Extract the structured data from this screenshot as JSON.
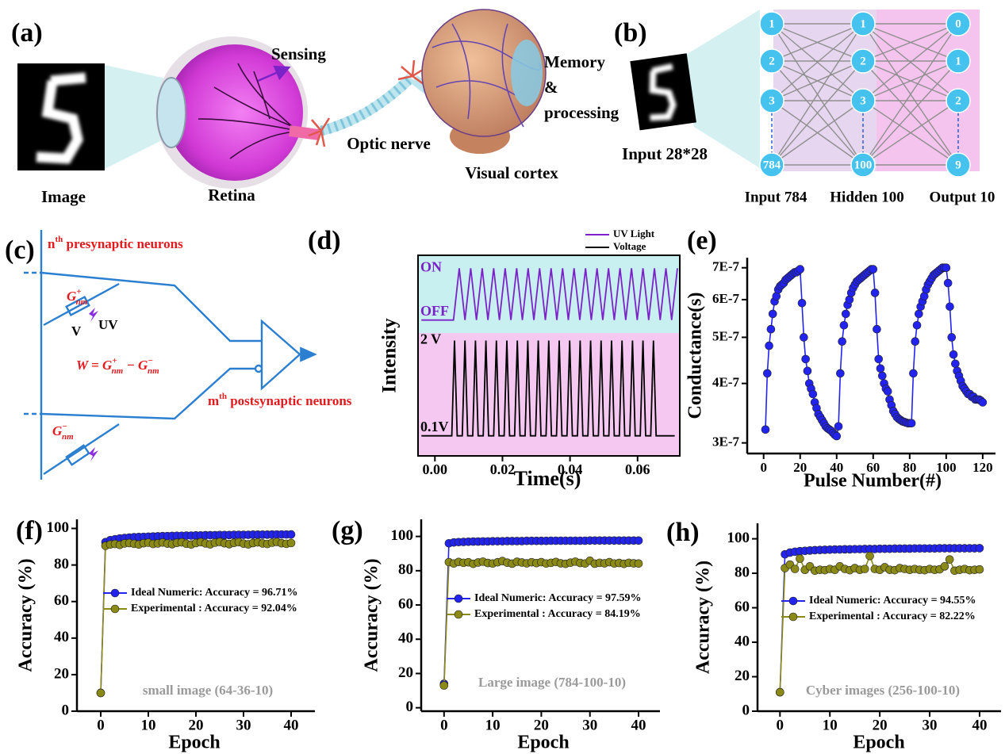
{
  "panel_a": {
    "label": "(a)",
    "image": "Image",
    "retina": "Retina",
    "sensing": "Sensing",
    "optic_nerve": "Optic nerve",
    "visual_cortex": "Visual cortex",
    "memory": [
      "Memory",
      "&",
      "processing"
    ]
  },
  "panel_b": {
    "label": "(b)",
    "input_image": "Input 28*28",
    "layers": [
      {
        "name": "Input 784",
        "nodes": [
          "1",
          "2",
          "3",
          "784"
        ]
      },
      {
        "name": "Hidden 100",
        "nodes": [
          "1",
          "2",
          "3",
          "100"
        ]
      },
      {
        "name": "Output 10",
        "nodes": [
          "0",
          "1",
          "2",
          "9"
        ]
      }
    ]
  },
  "panel_c": {
    "label": "(c)",
    "presynaptic": [
      "n",
      "th",
      " presynaptic neurons"
    ],
    "postsynaptic": [
      "m",
      "th",
      " postsynaptic neurons"
    ],
    "g_plus": [
      "G",
      "+",
      "nm"
    ],
    "g_minus": [
      "G",
      "−",
      "nm"
    ],
    "voltage": "V",
    "light": "UV",
    "equation": [
      "W = G",
      "+",
      "nm",
      " − G",
      "−",
      "nm"
    ]
  },
  "chart_data": [
    {
      "type": "line",
      "label": "(d)",
      "xlabel": "Time(s)",
      "ylabel": "Intensity",
      "xlim": [
        -0.005,
        0.0725
      ],
      "xticks": [
        {
          "value": 0,
          "label": "0.00"
        },
        {
          "value": 0.02,
          "label": "0.02"
        },
        {
          "value": 0.04,
          "label": "0.04"
        },
        {
          "value": 0.06,
          "label": "0.06"
        }
      ],
      "ylim": [
        -0.3,
        2.15
      ],
      "yticks": [
        {
          "value": 0.1,
          "label": "0.1V"
        },
        {
          "value": 2,
          "label": "2 V"
        }
      ],
      "y2lim": [
        -0.25,
        1.25
      ],
      "y2ticks": [
        {
          "value": 0,
          "label": "OFF"
        },
        {
          "value": 1,
          "label": "ON"
        }
      ],
      "series": [
        {
          "name": "UV Light",
          "color": "#7b22c8",
          "axis": "y2",
          "x": [
            -0.004,
            0.0055,
            0.0072,
            0.0089,
            0.0106,
            0.0123,
            0.014,
            0.0157,
            0.0174,
            0.0191,
            0.0208,
            0.0225,
            0.0242,
            0.0259,
            0.0276,
            0.0293,
            0.031,
            0.0327,
            0.0344,
            0.0361,
            0.0378,
            0.0395,
            0.0412,
            0.0429,
            0.0446,
            0.0463,
            0.048,
            0.0497,
            0.0514,
            0.0531,
            0.0548,
            0.0565,
            0.0582,
            0.0599,
            0.0616,
            0.0633,
            0.065,
            0.0667,
            0.0684,
            0.0701,
            0.0718
          ],
          "values": [
            0,
            0,
            1,
            0,
            1,
            0,
            1,
            0,
            1,
            0,
            1,
            0,
            1,
            0,
            1,
            0,
            1,
            0,
            1,
            0,
            1,
            0,
            1,
            0,
            1,
            0,
            1,
            0,
            1,
            0,
            1,
            0,
            1,
            0,
            1,
            0,
            1,
            0,
            1,
            0,
            1
          ]
        },
        {
          "name": "Voltage",
          "color": "#000000",
          "x": [
            -0.004,
            0.005,
            0.0058,
            0.0066,
            0.0081,
            0.0089,
            0.0097,
            0.0112,
            0.012,
            0.0128,
            0.0143,
            0.0151,
            0.0159,
            0.0174,
            0.0182,
            0.019,
            0.0205,
            0.0213,
            0.0221,
            0.0236,
            0.0244,
            0.0252,
            0.0267,
            0.0275,
            0.0283,
            0.0298,
            0.0306,
            0.0314,
            0.0329,
            0.0337,
            0.0345,
            0.036,
            0.0368,
            0.0376,
            0.0391,
            0.0399,
            0.0407,
            0.0422,
            0.043,
            0.0438,
            0.0453,
            0.0461,
            0.0469,
            0.0484,
            0.0492,
            0.05,
            0.0515,
            0.0523,
            0.0531,
            0.0546,
            0.0554,
            0.0562,
            0.0577,
            0.0585,
            0.0593,
            0.0608,
            0.0616,
            0.0624,
            0.0639,
            0.0647,
            0.0655,
            0.071
          ],
          "values": [
            0.1,
            0.1,
            2,
            0.1,
            0.1,
            2,
            0.1,
            0.1,
            2,
            0.1,
            0.1,
            2,
            0.1,
            0.1,
            2,
            0.1,
            0.1,
            2,
            0.1,
            0.1,
            2,
            0.1,
            0.1,
            2,
            0.1,
            0.1,
            2,
            0.1,
            0.1,
            2,
            0.1,
            0.1,
            2,
            0.1,
            0.1,
            2,
            0.1,
            0.1,
            2,
            0.1,
            0.1,
            2,
            0.1,
            0.1,
            2,
            0.1,
            0.1,
            2,
            0.1,
            0.1,
            2,
            0.1,
            0.1,
            2,
            0.1,
            0.1,
            2,
            0.1,
            0.1,
            2,
            0.1,
            0.1
          ]
        }
      ]
    },
    {
      "type": "line",
      "label": "(e)",
      "xlabel": "Pulse Number(#)",
      "ylabel": "Conductance(s)",
      "log_y": true,
      "markers": true,
      "xlim": [
        -9,
        127
      ],
      "xticks": [
        0,
        20,
        40,
        60,
        80,
        100,
        120
      ],
      "ylim": [
        2.85e-07,
        7.35e-07
      ],
      "yticks": [
        {
          "value": 3e-07,
          "label": "3E-7"
        },
        {
          "value": 4e-07,
          "label": "4E-7"
        },
        {
          "value": 5e-07,
          "label": "5E-7"
        },
        {
          "value": 6e-07,
          "label": "6E-7"
        },
        {
          "value": 7e-07,
          "label": "7E-7"
        }
      ],
      "x": [
        1,
        2,
        3,
        4,
        5,
        6,
        7,
        8,
        9,
        10,
        11,
        12,
        13,
        14,
        15,
        16,
        17,
        18,
        19,
        20,
        21,
        22,
        23,
        24,
        25,
        26,
        27,
        28,
        29,
        30,
        31,
        32,
        33,
        34,
        35,
        36,
        37,
        38,
        39,
        40,
        41,
        42,
        43,
        44,
        45,
        46,
        47,
        48,
        49,
        50,
        51,
        52,
        53,
        54,
        55,
        56,
        57,
        58,
        59,
        60,
        61,
        62,
        63,
        64,
        65,
        66,
        67,
        68,
        69,
        70,
        71,
        72,
        73,
        74,
        75,
        76,
        77,
        78,
        79,
        80,
        81,
        82,
        83,
        84,
        85,
        86,
        87,
        88,
        89,
        90,
        91,
        92,
        93,
        94,
        95,
        96,
        97,
        98,
        99,
        100,
        101,
        102,
        103,
        104,
        105,
        106,
        107,
        108,
        109,
        110,
        111,
        112,
        113,
        114,
        115,
        116,
        117,
        118,
        119,
        120
      ],
      "series": [
        {
          "color": "#2323f0",
          "values": [
            3.2e-07,
            4.2e-07,
            4.8e-07,
            5.2e-07,
            5.6e-07,
            5.95e-07,
            6.1e-07,
            6.3e-07,
            6.4e-07,
            6.45e-07,
            6.5e-07,
            6.6e-07,
            6.65e-07,
            6.7e-07,
            6.75e-07,
            6.8e-07,
            6.85e-07,
            6.85e-07,
            6.9e-07,
            6.95e-07,
            5.9e-07,
            5e-07,
            4.5e-07,
            4.25e-07,
            4e-07,
            3.9e-07,
            3.8e-07,
            3.65e-07,
            3.55e-07,
            3.45e-07,
            3.4e-07,
            3.35e-07,
            3.3e-07,
            3.25e-07,
            3.22e-07,
            3.2e-07,
            3.18e-07,
            3.15e-07,
            3.12e-07,
            3.1e-07,
            3.25e-07,
            4.2e-07,
            4.9e-07,
            5.3e-07,
            5.6e-07,
            5.85e-07,
            6e-07,
            6.2e-07,
            6.35e-07,
            6.45e-07,
            6.55e-07,
            6.6e-07,
            6.65e-07,
            6.7e-07,
            6.75e-07,
            6.8e-07,
            6.85e-07,
            6.9e-07,
            6.95e-07,
            6.95e-07,
            6.2e-07,
            5.2e-07,
            4.5e-07,
            4.3e-07,
            4.15e-07,
            4e-07,
            3.9e-07,
            3.85e-07,
            3.7e-07,
            3.6e-07,
            3.5e-07,
            3.45e-07,
            3.4e-07,
            3.37e-07,
            3.35e-07,
            3.33e-07,
            3.32e-07,
            3.31e-07,
            3.3e-07,
            3.3e-07,
            3.3e-07,
            4.2e-07,
            4.9e-07,
            5.3e-07,
            5.6e-07,
            5.8e-07,
            5.95e-07,
            6.1e-07,
            6.3e-07,
            6.45e-07,
            6.55e-07,
            6.65e-07,
            6.75e-07,
            6.8e-07,
            6.85e-07,
            6.9e-07,
            6.95e-07,
            7e-07,
            7e-07,
            7e-07,
            6.5e-07,
            5.8e-07,
            5e-07,
            4.6e-07,
            4.4e-07,
            4.25e-07,
            4.15e-07,
            4.05e-07,
            3.95e-07,
            3.9e-07,
            3.85e-07,
            3.8e-07,
            3.8e-07,
            3.75e-07,
            3.75e-07,
            3.7e-07,
            3.7e-07,
            3.7e-07,
            3.68e-07,
            3.65e-07
          ]
        }
      ]
    },
    {
      "type": "line",
      "label": "(f)",
      "xlabel": "Epoch",
      "ylabel": "Accuracy (%)",
      "annotation": "small image (64-36-10)",
      "markers": true,
      "xlim": [
        -5,
        45
      ],
      "xticks": [
        0,
        10,
        20,
        30,
        40
      ],
      "ylim": [
        0,
        105
      ],
      "yticks": [
        0,
        20,
        40,
        60,
        80,
        100
      ],
      "x": [
        0,
        1,
        2,
        3,
        4,
        5,
        6,
        7,
        8,
        9,
        10,
        11,
        12,
        13,
        14,
        15,
        16,
        17,
        18,
        19,
        20,
        21,
        22,
        23,
        24,
        25,
        26,
        27,
        28,
        29,
        30,
        31,
        32,
        33,
        34,
        35,
        36,
        37,
        38,
        39,
        40
      ],
      "series": [
        {
          "name": "Ideal Numeric: Accuracy = 96.71%",
          "color": "#2323f0",
          "values": [
            10,
            92.5,
            93.6,
            94.1,
            94.5,
            94.8,
            95.0,
            95.2,
            95.3,
            95.4,
            95.5,
            95.6,
            95.7,
            95.8,
            95.8,
            95.9,
            96.0,
            96.0,
            96.1,
            96.1,
            96.2,
            96.2,
            96.3,
            96.3,
            96.3,
            96.4,
            96.4,
            96.4,
            96.5,
            96.5,
            96.5,
            96.5,
            96.6,
            96.6,
            96.6,
            96.6,
            96.7,
            96.7,
            96.7,
            96.7,
            96.71
          ]
        },
        {
          "name": "Experimental : Accuracy = 92.04%",
          "color": "#8c8a16",
          "values": [
            10,
            90.5,
            91.2,
            91.5,
            91.0,
            91.8,
            92.0,
            91.6,
            91.2,
            91.9,
            92.2,
            91.5,
            91.8,
            92.3,
            91.7,
            91.4,
            92.1,
            92.4,
            91.6,
            91.2,
            92.0,
            92.5,
            91.8,
            91.3,
            92.2,
            92.6,
            91.9,
            91.4,
            92.1,
            92.5,
            91.7,
            91.3,
            92.0,
            92.4,
            91.8,
            91.5,
            92.2,
            92.6,
            91.9,
            91.6,
            92.04
          ]
        }
      ]
    },
    {
      "type": "line",
      "label": "(g)",
      "xlabel": "Epoch",
      "ylabel": "Accuracy (%)",
      "annotation": "Large image (784-100-10)",
      "markers": true,
      "xlim": [
        -4.7,
        44.4
      ],
      "xticks": [
        0,
        10,
        20,
        30,
        40
      ],
      "ylim": [
        -2,
        110
      ],
      "yticks": [
        0,
        20,
        40,
        60,
        80,
        100
      ],
      "x": [
        0,
        1,
        2,
        3,
        4,
        5,
        6,
        7,
        8,
        9,
        10,
        11,
        12,
        13,
        14,
        15,
        16,
        17,
        18,
        19,
        20,
        21,
        22,
        23,
        24,
        25,
        26,
        27,
        28,
        29,
        30,
        31,
        32,
        33,
        34,
        35,
        36,
        37,
        38,
        39,
        40
      ],
      "series": [
        {
          "name": "Ideal Numeric: Accuracy = 97.59%",
          "color": "#2323f0",
          "values": [
            14,
            96.0,
            96.5,
            96.7,
            96.8,
            96.9,
            97.0,
            97.0,
            97.1,
            97.1,
            97.2,
            97.2,
            97.2,
            97.3,
            97.3,
            97.3,
            97.3,
            97.4,
            97.4,
            97.4,
            97.4,
            97.4,
            97.5,
            97.5,
            97.5,
            97.5,
            97.5,
            97.5,
            97.5,
            97.5,
            97.6,
            97.6,
            97.6,
            97.6,
            97.6,
            97.6,
            97.6,
            97.6,
            97.6,
            97.6,
            97.59
          ]
        },
        {
          "name": "Experimental : Accuracy = 84.19%",
          "color": "#8c8a16",
          "values": [
            13,
            85.0,
            84.2,
            85.1,
            84.6,
            84.9,
            84.0,
            84.8,
            85.3,
            84.5,
            84.2,
            84.9,
            85.6,
            84.7,
            84.1,
            85.2,
            84.8,
            84.3,
            84.9,
            84.4,
            85.0,
            84.2,
            84.6,
            85.1,
            84.3,
            84.0,
            84.7,
            85.3,
            84.5,
            84.2,
            85.8,
            84.1,
            84.6,
            84.3,
            85.0,
            84.2,
            84.5,
            84.0,
            84.6,
            84.3,
            84.19
          ]
        }
      ]
    },
    {
      "type": "line",
      "label": "(h)",
      "xlabel": "Epoch",
      "ylabel": "Accuracy (%)",
      "annotation": "Cyber images (256-100-10)",
      "markers": true,
      "xlim": [
        -4.5,
        44.3
      ],
      "xticks": [
        0,
        10,
        20,
        30,
        40
      ],
      "ylim": [
        0,
        109
      ],
      "yticks": [
        0,
        20,
        40,
        60,
        80,
        100
      ],
      "x": [
        0,
        1,
        2,
        3,
        4,
        5,
        6,
        7,
        8,
        9,
        10,
        11,
        12,
        13,
        14,
        15,
        16,
        17,
        18,
        19,
        20,
        21,
        22,
        23,
        24,
        25,
        26,
        27,
        28,
        29,
        30,
        31,
        32,
        33,
        34,
        35,
        36,
        37,
        38,
        39,
        40
      ],
      "series": [
        {
          "name": "Ideal Numeric: Accuracy = 94.55%",
          "color": "#2323f0",
          "values": [
            11,
            91.0,
            92.0,
            92.5,
            92.8,
            93.0,
            93.2,
            93.4,
            93.5,
            93.6,
            93.7,
            93.8,
            93.8,
            93.9,
            93.9,
            94.0,
            94.0,
            94.1,
            94.1,
            94.1,
            94.2,
            94.2,
            94.2,
            94.3,
            94.3,
            94.3,
            94.3,
            94.4,
            94.4,
            94.4,
            94.4,
            94.4,
            94.5,
            94.5,
            94.5,
            94.5,
            94.5,
            94.5,
            94.5,
            94.5,
            94.55
          ]
        },
        {
          "name": "Experimental : Accuracy = 82.22%",
          "color": "#8c8a16",
          "values": [
            11,
            83.0,
            85.0,
            82.5,
            88.5,
            82.0,
            84.0,
            81.5,
            82.0,
            81.8,
            82.5,
            82.0,
            84.0,
            82.5,
            81.8,
            83.0,
            82.0,
            82.5,
            90.0,
            82.5,
            82.0,
            83.5,
            82.0,
            81.8,
            83.0,
            82.5,
            82.0,
            82.5,
            82.0,
            81.8,
            82.5,
            82.0,
            82.3,
            84.0,
            88.0,
            81.5,
            82.0,
            82.5,
            81.8,
            82.0,
            82.22
          ]
        }
      ]
    }
  ]
}
